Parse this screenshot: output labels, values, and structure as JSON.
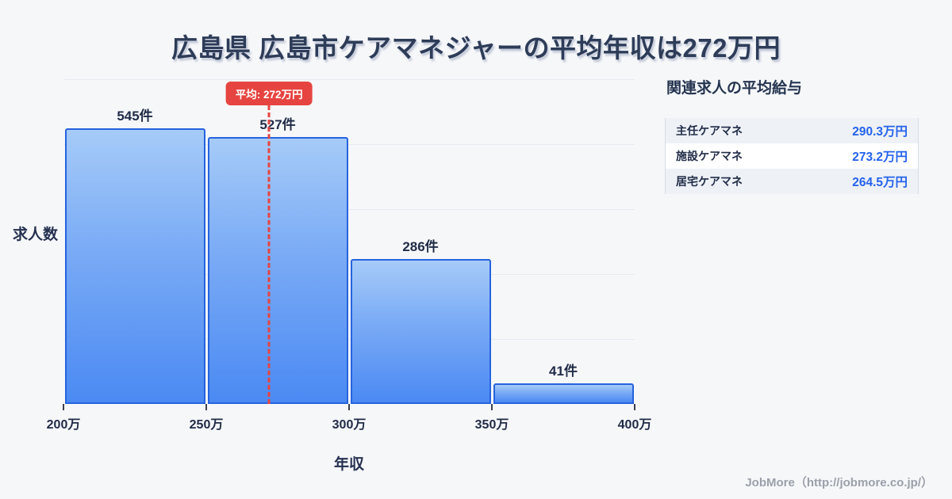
{
  "title": "広島県 広島市ケアマネジャーの平均年収は272万円",
  "chart_data": {
    "type": "bar",
    "title": "広島県 広島市ケアマネジャーの平均年収は272万円",
    "xlabel": "年収",
    "ylabel": "求人数",
    "categories": [
      "200万-250万",
      "250万-300万",
      "300万-350万",
      "350万-400万"
    ],
    "values": [
      545,
      527,
      286,
      41
    ],
    "bar_labels": [
      "545件",
      "527件",
      "286件",
      "41件"
    ],
    "x_ticks": [
      "200万",
      "250万",
      "300万",
      "350万",
      "400万"
    ],
    "xlim": [
      200,
      400
    ],
    "ylim": [
      0,
      642
    ],
    "grid": true,
    "legend": "none",
    "average": {
      "label": "平均: 272万円",
      "value": 272,
      "unit": "万円"
    }
  },
  "side_panel": {
    "heading": "関連求人の平均給与",
    "rows": [
      {
        "label": "主任ケアマネ",
        "value": "290.3万円"
      },
      {
        "label": "施設ケアマネ",
        "value": "273.2万円"
      },
      {
        "label": "居宅ケアマネ",
        "value": "264.5万円"
      }
    ]
  },
  "footer": {
    "credit": "JobMore（http://jobmore.co.jp/）"
  },
  "colors": {
    "background": "#f6f7f9",
    "title_text": "#2d3c58",
    "bar_border": "#2663de",
    "bar_fill_top": "#a6cbf8",
    "bar_fill_bottom": "#4b8af3",
    "average_accent": "#e64440",
    "value_blue": "#2563eb",
    "gridline": "#e7eaf1",
    "footer_text": "#9aa0aa"
  }
}
